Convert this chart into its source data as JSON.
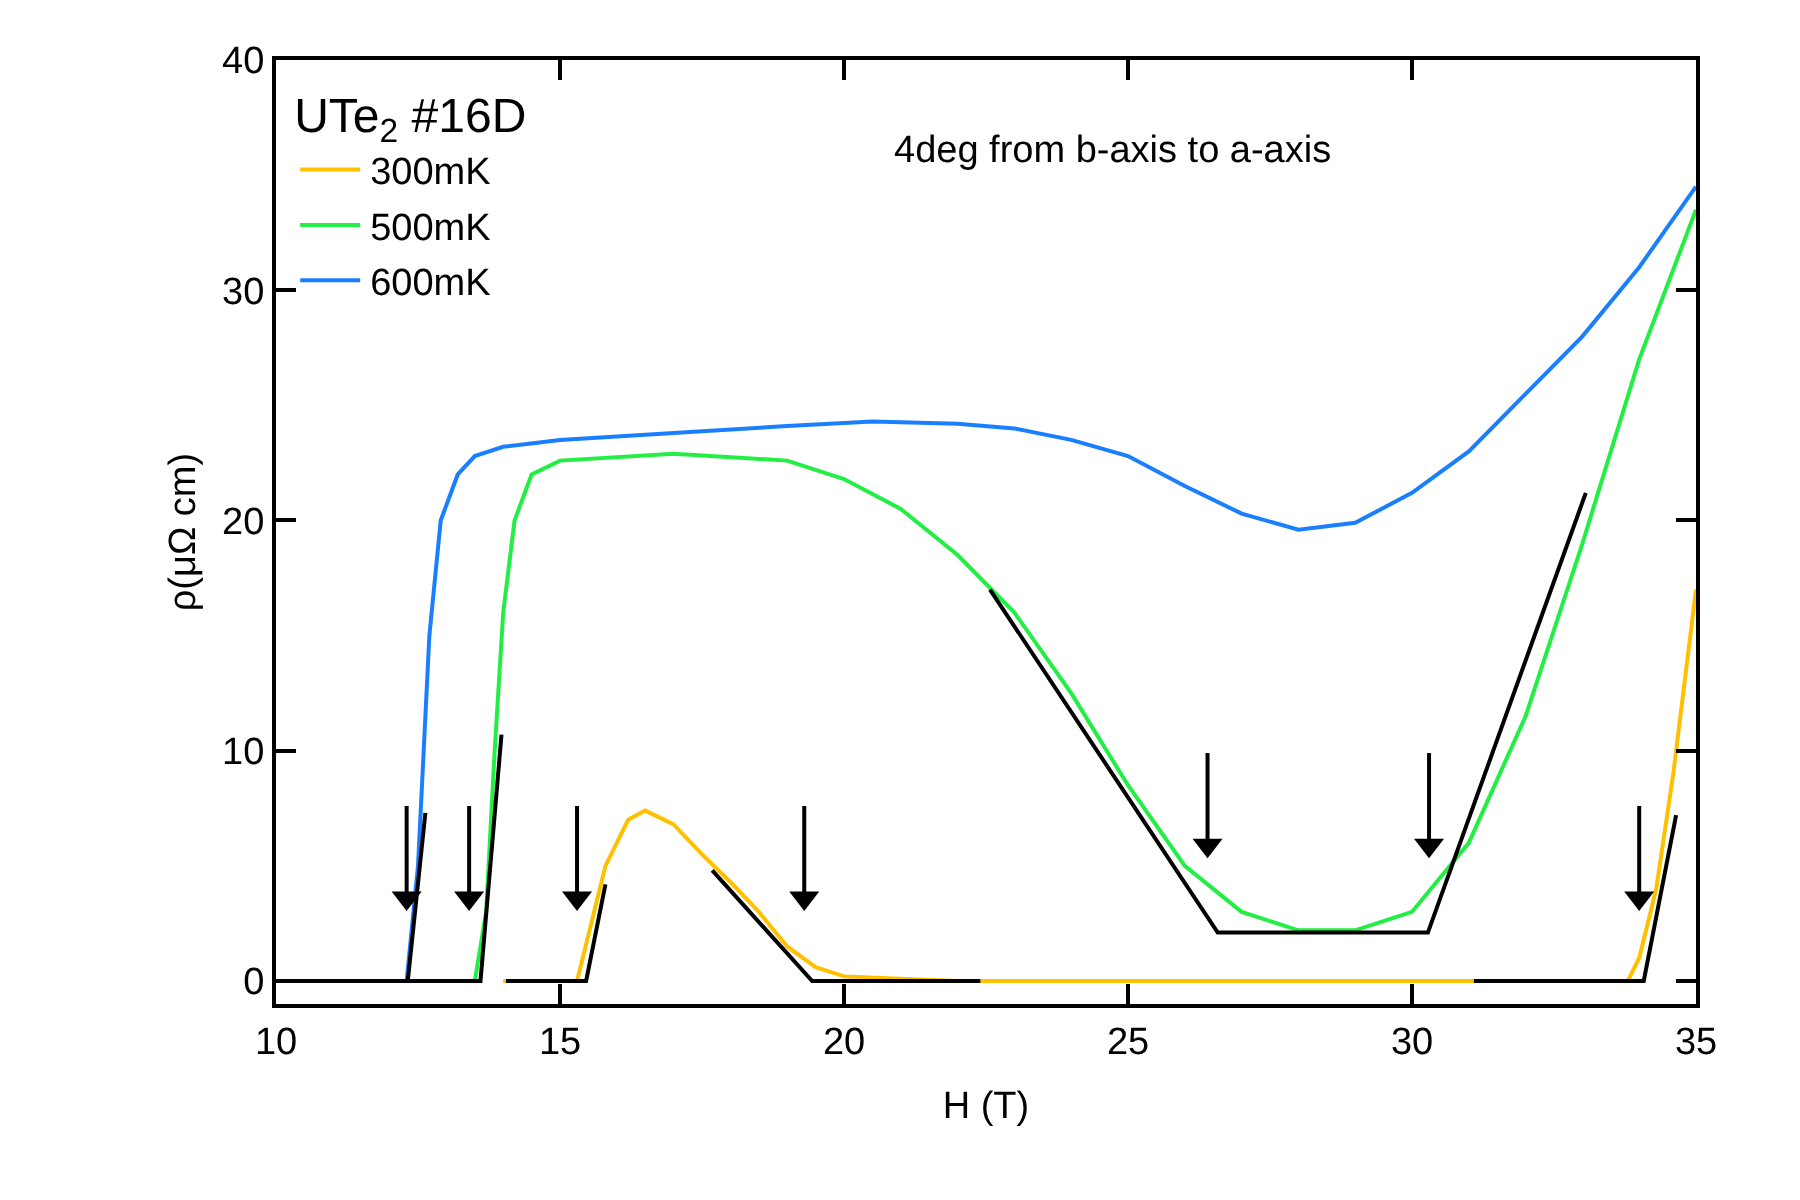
{
  "chart_data": {
    "type": "line",
    "xlabel": "H (T)",
    "ylabel": "ρ(μΩ cm)",
    "legend_title": "UTe$_{2}$ #16D",
    "annotations": [
      "4deg from b-axis to a-axis"
    ],
    "xlim": [
      10,
      35
    ],
    "xticks": [
      10,
      15,
      20,
      25,
      30,
      35
    ],
    "ylim": [
      -1,
      40
    ],
    "yticks": [
      0,
      10,
      20,
      30,
      40
    ],
    "legend": "top left",
    "line_style": "solid",
    "marker": "none",
    "series": [
      {
        "name": "300mK",
        "color": "#ffc000",
        "x": [
          14.0,
          15.3,
          15.5,
          15.8,
          16.2,
          16.5,
          17.0,
          17.5,
          18.0,
          18.5,
          19.0,
          19.5,
          20.0,
          22.0,
          25.0,
          28.0,
          31.0,
          33.8,
          34.0,
          34.3,
          34.6,
          35.0
        ],
        "values": [
          0,
          0,
          2,
          5,
          7,
          7.4,
          6.8,
          5.5,
          4.3,
          3,
          1.5,
          0.6,
          0.2,
          0,
          0,
          0,
          0,
          0,
          1,
          4,
          9,
          17
        ]
      },
      {
        "name": "500mK",
        "color": "#22ee44",
        "x": [
          10.0,
          12.0,
          13.5,
          13.7,
          13.85,
          14.0,
          14.2,
          14.5,
          15.0,
          17.0,
          19.0,
          20.0,
          21.0,
          22.0,
          23.0,
          24.0,
          25.0,
          26.0,
          27.0,
          28.0,
          29.0,
          30.0,
          31.0,
          32.0,
          33.0,
          34.0,
          35.0
        ],
        "values": [
          0,
          0,
          0,
          3,
          10,
          16,
          20,
          22,
          22.6,
          22.9,
          22.6,
          21.8,
          20.5,
          18.5,
          16,
          12.5,
          8.5,
          5,
          3,
          2.2,
          2.2,
          3,
          6,
          11.5,
          19,
          27,
          33.5
        ]
      },
      {
        "name": "600mK",
        "color": "#1a7fff",
        "x": [
          10.0,
          12.3,
          12.5,
          12.7,
          12.9,
          13.2,
          13.5,
          14.0,
          15.0,
          17.0,
          19.0,
          20.5,
          22.0,
          23.0,
          24.0,
          25.0,
          26.0,
          27.0,
          28.0,
          29.0,
          30.0,
          31.0,
          32.0,
          33.0,
          34.0,
          35.0
        ],
        "values": [
          0,
          0,
          5,
          15,
          20,
          22,
          22.8,
          23.2,
          23.5,
          23.8,
          24.1,
          24.3,
          24.2,
          24,
          23.5,
          22.8,
          21.5,
          20.3,
          19.6,
          19.9,
          21.2,
          23,
          25.5,
          28,
          31,
          34.5
        ]
      },
      {
        "color": "#000000",
        "x": [
          10.0,
          12.32,
          12.63,
          null,
          12.32,
          13.6,
          13.97,
          null,
          14.05,
          15.46,
          15.8,
          null,
          17.68,
          19.44,
          22.4,
          null,
          22.57,
          26.58,
          30.28,
          33.06,
          null,
          31.09,
          34.08,
          34.65
        ],
        "values": [
          0,
          0,
          7.3,
          null,
          0,
          0,
          10.7,
          null,
          0,
          0,
          4.2,
          null,
          4.8,
          0,
          0,
          null,
          17.0,
          2.1,
          2.1,
          21.2,
          null,
          0,
          0,
          7.2
        ]
      },
      {
        "type": "scatter",
        "marker": "triangle",
        "color": "#000000",
        "x": [
          12.3,
          13.4,
          15.3,
          19.3,
          26.4,
          30.3,
          34.0
        ],
        "values": [
          3.6,
          3.6,
          3.6,
          3.6,
          5.9,
          5.9,
          3.6
        ],
        "errors": [
          [
            3.6,
            7.6
          ],
          [
            3.6,
            7.6
          ],
          [
            3.6,
            7.6
          ],
          [
            3.6,
            7.6
          ],
          [
            5.9,
            9.9
          ],
          [
            5.9,
            9.9
          ],
          [
            3.6,
            7.6
          ]
        ]
      }
    ]
  }
}
